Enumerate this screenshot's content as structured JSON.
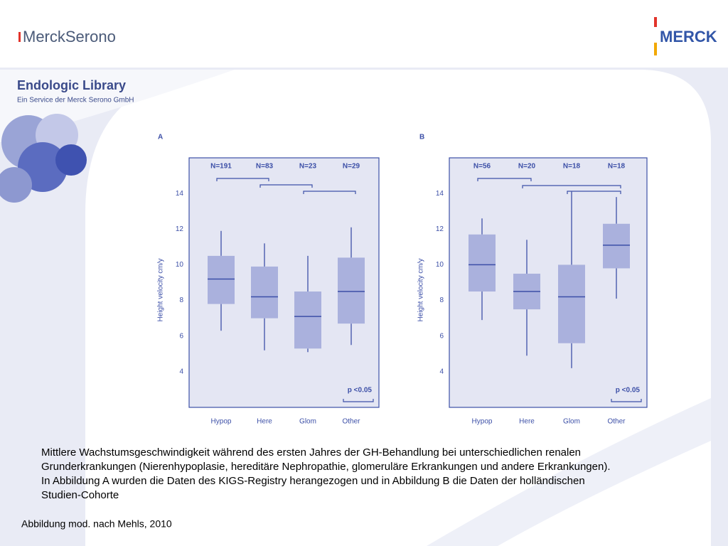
{
  "header": {
    "left_logo": "MerckSerono",
    "right_logo": "MERCK",
    "title": "Endologic Library",
    "subtitle": "Ein Service der Merck Serono GmbH"
  },
  "chart_data": [
    {
      "type": "box",
      "panel": "A",
      "ylabel": "Height velocity cm/y",
      "categories": [
        "Hypop",
        "Here",
        "Glom",
        "Other"
      ],
      "n_labels": [
        "N=191",
        "N=83",
        "N=23",
        "N=29"
      ],
      "whisker_low": [
        6.3,
        5.2,
        5.1,
        5.5
      ],
      "q1": [
        7.8,
        7.0,
        5.3,
        6.7
      ],
      "median": [
        9.2,
        8.2,
        7.1,
        8.5
      ],
      "q3": [
        10.5,
        9.9,
        8.5,
        10.4
      ],
      "whisker_high": [
        11.9,
        11.2,
        10.5,
        12.1
      ],
      "ylim": [
        2,
        16
      ],
      "yticks": [
        4,
        6,
        8,
        10,
        12,
        14
      ],
      "p_label": "p <0.05",
      "color": "#aab1dd",
      "line_color": "#3c4fa7"
    },
    {
      "type": "box",
      "panel": "B",
      "ylabel": "Height velocity cm/y",
      "categories": [
        "Hypop",
        "Here",
        "Glom",
        "Other"
      ],
      "n_labels": [
        "N=56",
        "N=20",
        "N=18",
        "N=18"
      ],
      "whisker_low": [
        6.9,
        4.9,
        4.2,
        8.1
      ],
      "q1": [
        8.5,
        7.5,
        5.6,
        9.8
      ],
      "median": [
        10.0,
        8.5,
        8.2,
        11.1
      ],
      "q3": [
        11.7,
        9.5,
        10.0,
        12.3
      ],
      "whisker_high": [
        12.6,
        11.4,
        14.1,
        13.8
      ],
      "ylim": [
        2,
        16
      ],
      "yticks": [
        4,
        6,
        8,
        10,
        12,
        14
      ],
      "p_label": "p <0.05",
      "color": "#aab1dd",
      "line_color": "#3c4fa7"
    }
  ],
  "caption": [
    "Mittlere Wachstumsgeschwindigkeit während des ersten Jahres der GH-Behandlung bei unterschiedlichen renalen",
    "Grunderkrankungen (Nierenhypoplasie, hereditäre Nephropathie, glomeruläre Erkrankungen und andere Erkrankungen).",
    "In Abbildung A wurden die Daten des KIGS-Registry herangezogen und in Abbildung B die Daten der holländischen",
    "Studien-Cohorte"
  ],
  "citation": "Abbildung mod. nach Mehls, 2010"
}
